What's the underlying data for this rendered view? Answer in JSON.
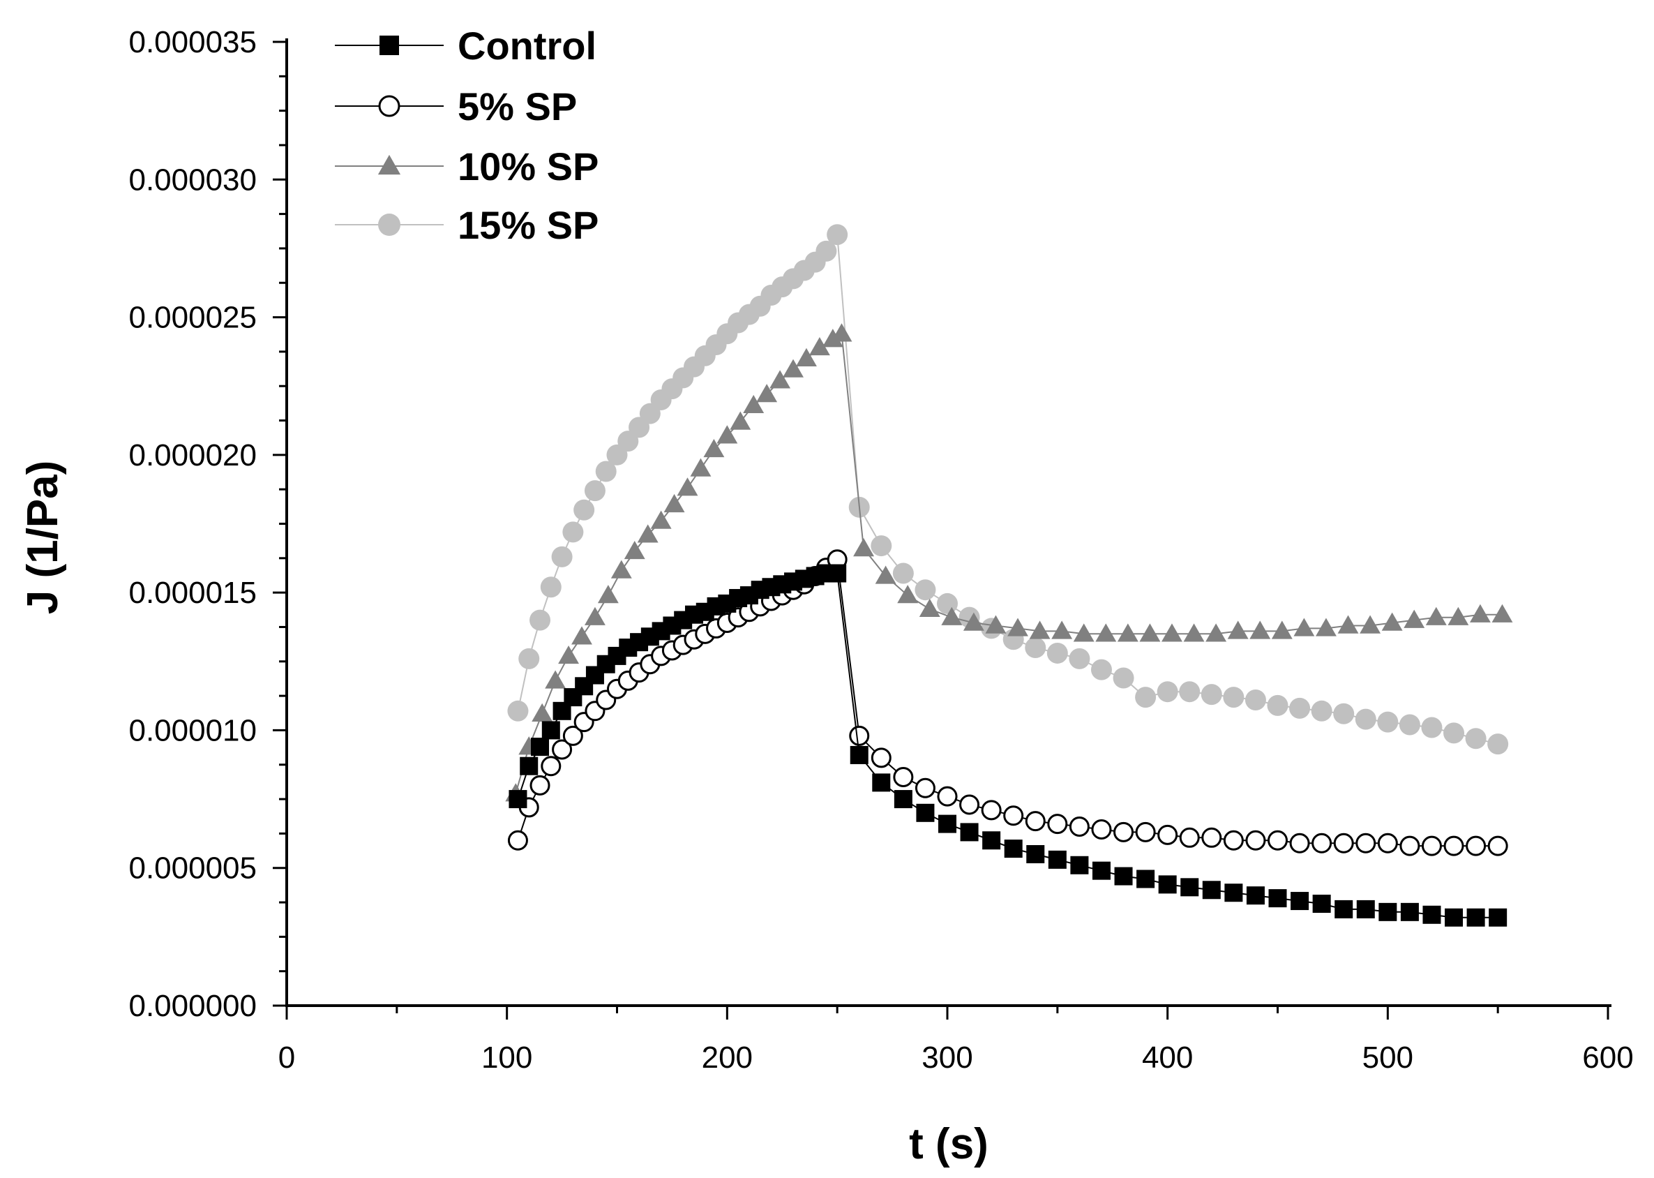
{
  "chart_data": {
    "type": "scatter",
    "title": "",
    "xlabel": "t (s)",
    "ylabel": "J (1/Pa)",
    "xlim": [
      0,
      600
    ],
    "ylim": [
      0,
      3.5e-05
    ],
    "xticks": [
      0,
      100,
      200,
      300,
      400,
      500,
      600
    ],
    "xtick_labels": [
      "0",
      "100",
      "200",
      "300",
      "400",
      "500",
      "600"
    ],
    "yticks": [
      0,
      5e-06,
      1e-05,
      1.5e-05,
      2e-05,
      2.5e-05,
      3e-05,
      3.5e-05
    ],
    "ytick_labels": [
      "0.000000",
      "0.000005",
      "0.000010",
      "0.000015",
      "0.000020",
      "0.000025",
      "0.000030",
      "0.000035"
    ],
    "grid": false,
    "legend_position": "top-left",
    "series": [
      {
        "name": "Control",
        "marker": "filled-square",
        "color": "#000000",
        "x": [
          105,
          110,
          115,
          120,
          125,
          130,
          135,
          140,
          145,
          150,
          155,
          160,
          165,
          170,
          175,
          180,
          185,
          190,
          195,
          200,
          205,
          210,
          215,
          220,
          225,
          230,
          235,
          240,
          245,
          250,
          260,
          270,
          280,
          290,
          300,
          310,
          320,
          330,
          340,
          350,
          360,
          370,
          380,
          390,
          400,
          410,
          420,
          430,
          440,
          450,
          460,
          470,
          480,
          490,
          500,
          510,
          520,
          530,
          540,
          550
        ],
        "y": [
          7.5e-06,
          8.7e-06,
          9.4e-06,
          1e-05,
          1.07e-05,
          1.12e-05,
          1.16e-05,
          1.2e-05,
          1.24e-05,
          1.27e-05,
          1.3e-05,
          1.32e-05,
          1.34e-05,
          1.36e-05,
          1.38e-05,
          1.4e-05,
          1.42e-05,
          1.43e-05,
          1.45e-05,
          1.46e-05,
          1.48e-05,
          1.49e-05,
          1.51e-05,
          1.52e-05,
          1.53e-05,
          1.54e-05,
          1.55e-05,
          1.56e-05,
          1.57e-05,
          1.57e-05,
          9.1e-06,
          8.1e-06,
          7.5e-06,
          7e-06,
          6.6e-06,
          6.3e-06,
          6e-06,
          5.7e-06,
          5.5e-06,
          5.3e-06,
          5.1e-06,
          4.9e-06,
          4.7e-06,
          4.6e-06,
          4.4e-06,
          4.3e-06,
          4.2e-06,
          4.1e-06,
          4e-06,
          3.9e-06,
          3.8e-06,
          3.7e-06,
          3.5e-06,
          3.5e-06,
          3.4e-06,
          3.4e-06,
          3.3e-06,
          3.2e-06,
          3.2e-06,
          3.2e-06
        ]
      },
      {
        "name": "5% SP",
        "marker": "open-circle",
        "color": "#000000",
        "x": [
          105,
          110,
          115,
          120,
          125,
          130,
          135,
          140,
          145,
          150,
          155,
          160,
          165,
          170,
          175,
          180,
          185,
          190,
          195,
          200,
          205,
          210,
          215,
          220,
          225,
          230,
          235,
          240,
          245,
          250,
          260,
          270,
          280,
          290,
          300,
          310,
          320,
          330,
          340,
          350,
          360,
          370,
          380,
          390,
          400,
          410,
          420,
          430,
          440,
          450,
          460,
          470,
          480,
          490,
          500,
          510,
          520,
          530,
          540,
          550
        ],
        "y": [
          6e-06,
          7.2e-06,
          8e-06,
          8.7e-06,
          9.3e-06,
          9.8e-06,
          1.03e-05,
          1.07e-05,
          1.11e-05,
          1.15e-05,
          1.18e-05,
          1.21e-05,
          1.24e-05,
          1.27e-05,
          1.29e-05,
          1.31e-05,
          1.33e-05,
          1.35e-05,
          1.37e-05,
          1.39e-05,
          1.41e-05,
          1.43e-05,
          1.45e-05,
          1.47e-05,
          1.49e-05,
          1.51e-05,
          1.53e-05,
          1.56e-05,
          1.59e-05,
          1.62e-05,
          9.8e-06,
          9e-06,
          8.3e-06,
          7.9e-06,
          7.6e-06,
          7.3e-06,
          7.1e-06,
          6.9e-06,
          6.7e-06,
          6.6e-06,
          6.5e-06,
          6.4e-06,
          6.3e-06,
          6.3e-06,
          6.2e-06,
          6.1e-06,
          6.1e-06,
          6e-06,
          6e-06,
          6e-06,
          5.9e-06,
          5.9e-06,
          5.9e-06,
          5.9e-06,
          5.9e-06,
          5.8e-06,
          5.8e-06,
          5.8e-06,
          5.8e-06,
          5.8e-06
        ]
      },
      {
        "name": "10% SP",
        "marker": "filled-triangle",
        "color": "#808080",
        "x": [
          104,
          110,
          116,
          122,
          128,
          134,
          140,
          146,
          152,
          158,
          164,
          170,
          176,
          182,
          188,
          194,
          200,
          206,
          212,
          218,
          224,
          230,
          236,
          242,
          248,
          252,
          262,
          272,
          282,
          292,
          302,
          312,
          322,
          332,
          342,
          352,
          362,
          372,
          382,
          392,
          402,
          412,
          422,
          432,
          442,
          452,
          462,
          472,
          482,
          492,
          502,
          512,
          522,
          532,
          542,
          552
        ],
        "y": [
          7.7e-06,
          9.4e-06,
          1.06e-05,
          1.18e-05,
          1.27e-05,
          1.34e-05,
          1.41e-05,
          1.49e-05,
          1.58e-05,
          1.65e-05,
          1.71e-05,
          1.76e-05,
          1.82e-05,
          1.88e-05,
          1.95e-05,
          2.02e-05,
          2.07e-05,
          2.12e-05,
          2.18e-05,
          2.22e-05,
          2.27e-05,
          2.31e-05,
          2.35e-05,
          2.39e-05,
          2.42e-05,
          2.44e-05,
          1.66e-05,
          1.56e-05,
          1.49e-05,
          1.44e-05,
          1.41e-05,
          1.39e-05,
          1.38e-05,
          1.37e-05,
          1.36e-05,
          1.36e-05,
          1.35e-05,
          1.35e-05,
          1.35e-05,
          1.35e-05,
          1.35e-05,
          1.35e-05,
          1.35e-05,
          1.36e-05,
          1.36e-05,
          1.36e-05,
          1.37e-05,
          1.37e-05,
          1.38e-05,
          1.38e-05,
          1.39e-05,
          1.4e-05,
          1.41e-05,
          1.41e-05,
          1.42e-05,
          1.42e-05
        ]
      },
      {
        "name": "15% SP",
        "marker": "filled-circle",
        "color": "#c0c0c0",
        "x": [
          105,
          110,
          115,
          120,
          125,
          130,
          135,
          140,
          145,
          150,
          155,
          160,
          165,
          170,
          175,
          180,
          185,
          190,
          195,
          200,
          205,
          210,
          215,
          220,
          225,
          230,
          235,
          240,
          245,
          250,
          260,
          270,
          280,
          290,
          300,
          310,
          320,
          330,
          340,
          350,
          360,
          370,
          380,
          390,
          400,
          410,
          420,
          430,
          440,
          450,
          460,
          470,
          480,
          490,
          500,
          510,
          520,
          530,
          540,
          550
        ],
        "y": [
          1.07e-05,
          1.26e-05,
          1.4e-05,
          1.52e-05,
          1.63e-05,
          1.72e-05,
          1.8e-05,
          1.87e-05,
          1.94e-05,
          2e-05,
          2.05e-05,
          2.1e-05,
          2.15e-05,
          2.2e-05,
          2.24e-05,
          2.28e-05,
          2.32e-05,
          2.36e-05,
          2.4e-05,
          2.44e-05,
          2.48e-05,
          2.51e-05,
          2.54e-05,
          2.58e-05,
          2.61e-05,
          2.64e-05,
          2.67e-05,
          2.7e-05,
          2.74e-05,
          2.8e-05,
          1.81e-05,
          1.67e-05,
          1.57e-05,
          1.51e-05,
          1.46e-05,
          1.41e-05,
          1.37e-05,
          1.33e-05,
          1.3e-05,
          1.28e-05,
          1.26e-05,
          1.22e-05,
          1.19e-05,
          1.12e-05,
          1.14e-05,
          1.14e-05,
          1.13e-05,
          1.12e-05,
          1.11e-05,
          1.09e-05,
          1.08e-05,
          1.07e-05,
          1.06e-05,
          1.04e-05,
          1.03e-05,
          1.02e-05,
          1.01e-05,
          9.9e-06,
          9.7e-06,
          9.5e-06
        ]
      }
    ]
  }
}
